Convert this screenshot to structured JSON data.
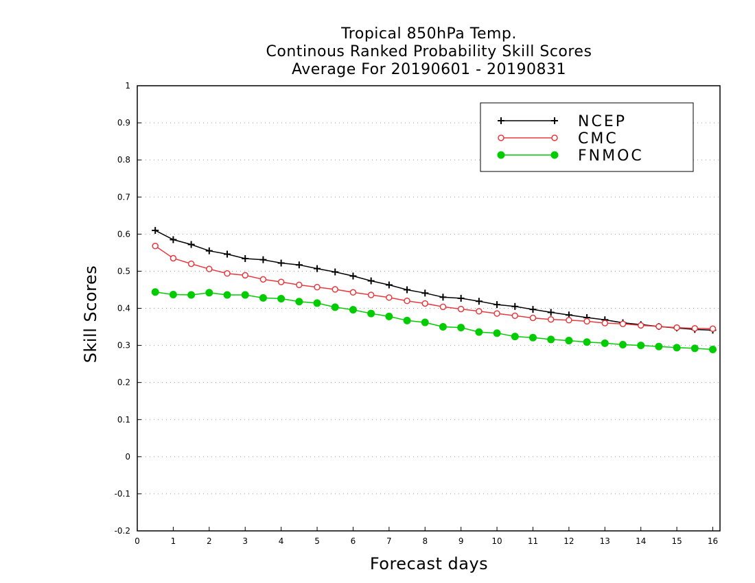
{
  "chart_data": {
    "type": "line",
    "title": [
      "Tropical 850hPa Temp.",
      "Continous Ranked Probability Skill Scores",
      "Average For 20190601 - 20190831"
    ],
    "xlabel": "Forecast days",
    "ylabel": "Skill Scores",
    "xlim": [
      0,
      16.2
    ],
    "ylim": [
      -0.2,
      1
    ],
    "xticks": [
      "0",
      "1",
      "2",
      "3",
      "4",
      "5",
      "6",
      "7",
      "8",
      "9",
      "10",
      "11",
      "12",
      "13",
      "14",
      "15",
      "16"
    ],
    "yticks": [
      "1",
      "0.9",
      "0.8",
      "0.7",
      "0.6",
      "0.5",
      "0.4",
      "0.3",
      "0.2",
      "0.1",
      "0",
      "-0.1",
      "-0.2"
    ],
    "grid": "dotted horizontal",
    "legend_position": "top-right",
    "x": [
      0.5,
      1,
      1.5,
      2,
      2.5,
      3,
      3.5,
      4,
      4.5,
      5,
      5.5,
      6,
      6.5,
      7,
      7.5,
      8,
      8.5,
      9,
      9.5,
      10,
      10.5,
      11,
      11.5,
      12,
      12.5,
      13,
      13.5,
      14,
      14.5,
      15,
      15.5,
      16
    ],
    "series": [
      {
        "name": "NCEP",
        "color": "#000000",
        "marker": "plus",
        "values": [
          0.61,
          0.585,
          0.572,
          0.555,
          0.546,
          0.534,
          0.531,
          0.522,
          0.517,
          0.507,
          0.498,
          0.487,
          0.474,
          0.463,
          0.45,
          0.441,
          0.43,
          0.427,
          0.419,
          0.41,
          0.405,
          0.397,
          0.389,
          0.382,
          0.375,
          0.369,
          0.361,
          0.356,
          0.351,
          0.347,
          0.343,
          0.341
        ]
      },
      {
        "name": "CMC",
        "color": "#e8383d",
        "marker": "open-circle",
        "values": [
          0.568,
          0.535,
          0.52,
          0.506,
          0.494,
          0.489,
          0.478,
          0.471,
          0.463,
          0.457,
          0.451,
          0.443,
          0.436,
          0.429,
          0.42,
          0.413,
          0.404,
          0.398,
          0.392,
          0.386,
          0.38,
          0.374,
          0.37,
          0.368,
          0.365,
          0.36,
          0.358,
          0.354,
          0.351,
          0.348,
          0.346,
          0.345
        ]
      },
      {
        "name": "FNMOC",
        "color": "#00cc00",
        "marker": "filled-circle",
        "values": [
          0.444,
          0.437,
          0.436,
          0.442,
          0.436,
          0.436,
          0.428,
          0.426,
          0.418,
          0.414,
          0.403,
          0.396,
          0.386,
          0.378,
          0.367,
          0.362,
          0.35,
          0.348,
          0.336,
          0.333,
          0.324,
          0.321,
          0.316,
          0.313,
          0.309,
          0.306,
          0.302,
          0.3,
          0.297,
          0.294,
          0.292,
          0.289
        ]
      }
    ]
  }
}
